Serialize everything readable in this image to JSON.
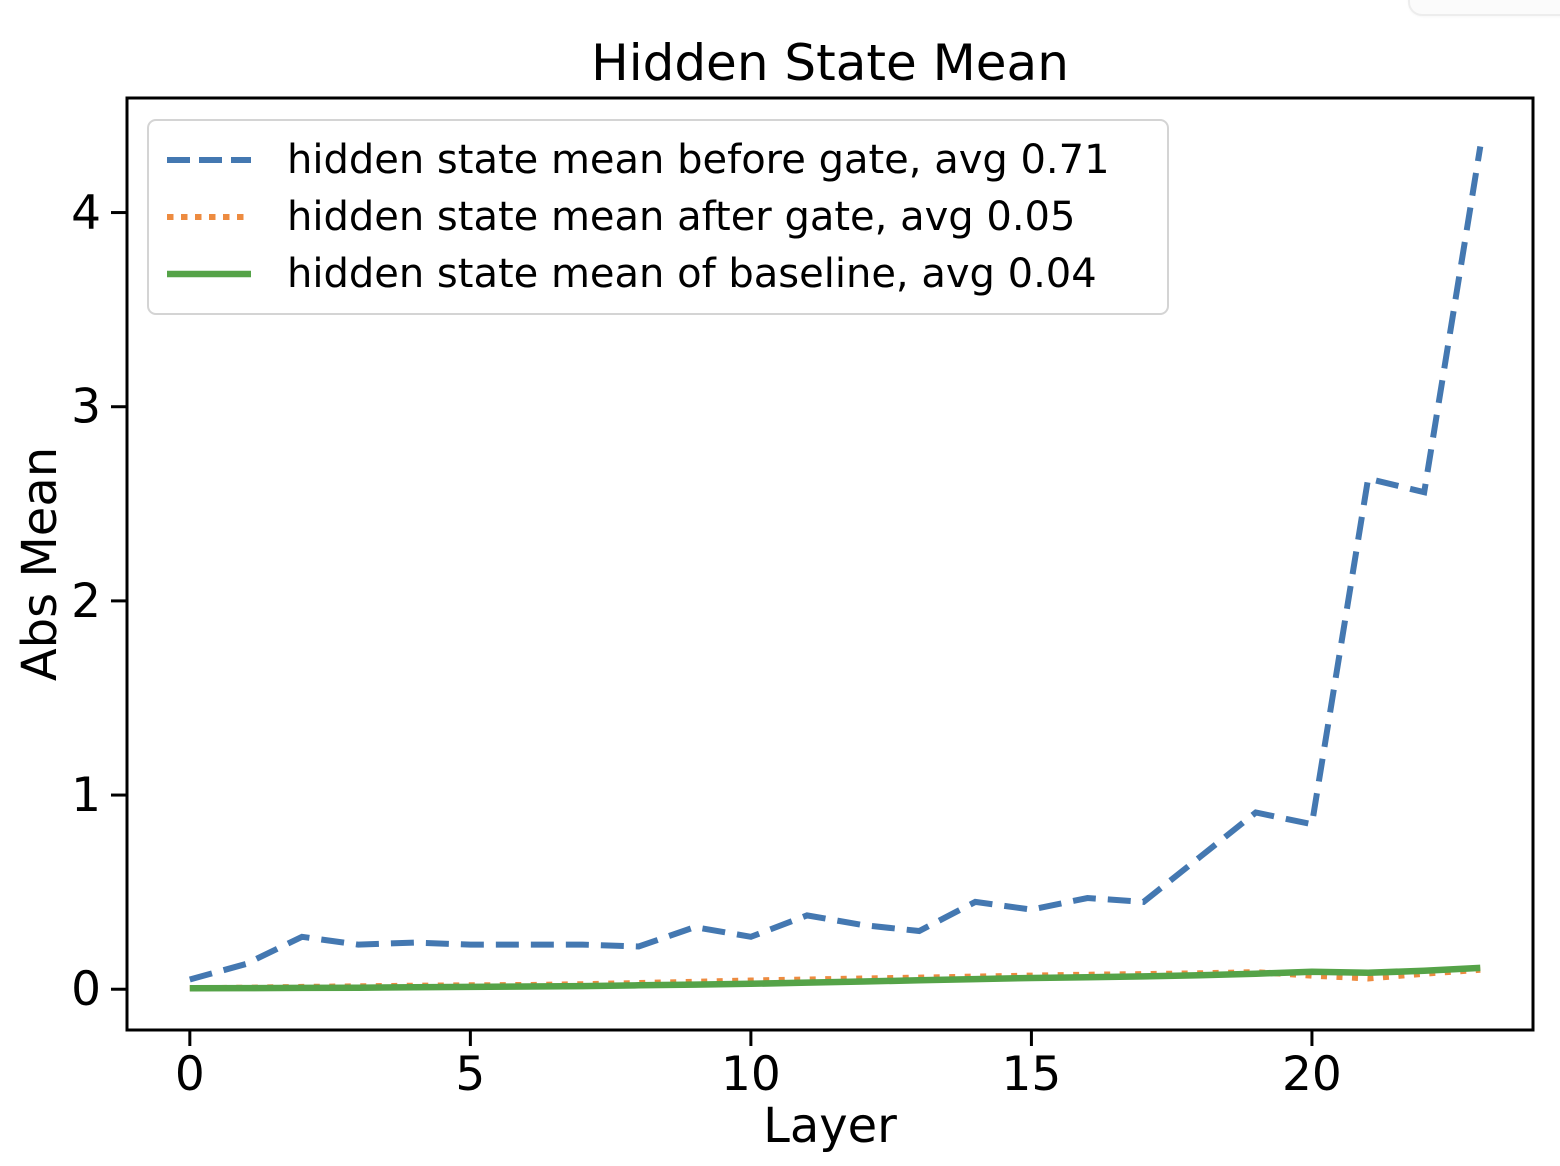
{
  "chart_data": {
    "type": "line",
    "title": "Hidden State Mean",
    "xlabel": "Layer",
    "ylabel": "Abs Mean",
    "x": [
      0,
      1,
      2,
      3,
      4,
      5,
      6,
      7,
      8,
      9,
      10,
      11,
      12,
      13,
      14,
      15,
      16,
      17,
      18,
      19,
      20,
      21,
      22,
      23
    ],
    "xticks": [
      0,
      5,
      10,
      15,
      20
    ],
    "yticks": [
      0,
      1,
      2,
      3,
      4
    ],
    "xlim": [
      -1.12,
      23.94
    ],
    "ylim": [
      -0.21,
      4.59
    ],
    "grid": false,
    "legend_position": "upper left",
    "axis_color": "#000000",
    "series": [
      {
        "name": "hidden state mean before gate, avg 0.71",
        "avg": 0.71,
        "color": "#4478B1",
        "style": "dashed",
        "values": [
          0.05,
          0.13,
          0.27,
          0.23,
          0.24,
          0.23,
          0.23,
          0.23,
          0.22,
          0.32,
          0.27,
          0.38,
          0.33,
          0.3,
          0.45,
          0.41,
          0.47,
          0.45,
          0.68,
          0.91,
          0.85,
          2.63,
          2.56,
          4.34
        ]
      },
      {
        "name": "hidden state mean after gate, avg 0.05",
        "avg": 0.05,
        "color": "#ED8B40",
        "style": "dotted",
        "values": [
          0.005,
          0.008,
          0.012,
          0.015,
          0.018,
          0.02,
          0.022,
          0.026,
          0.032,
          0.038,
          0.045,
          0.05,
          0.055,
          0.06,
          0.065,
          0.07,
          0.075,
          0.078,
          0.082,
          0.088,
          0.07,
          0.055,
          0.08,
          0.1
        ]
      },
      {
        "name": "hidden state mean of baseline, avg 0.04",
        "avg": 0.04,
        "color": "#55A348",
        "style": "solid",
        "values": [
          0.005,
          0.006,
          0.007,
          0.008,
          0.01,
          0.012,
          0.014,
          0.016,
          0.02,
          0.024,
          0.028,
          0.034,
          0.04,
          0.046,
          0.052,
          0.058,
          0.062,
          0.066,
          0.072,
          0.08,
          0.09,
          0.085,
          0.095,
          0.11
        ]
      }
    ]
  }
}
